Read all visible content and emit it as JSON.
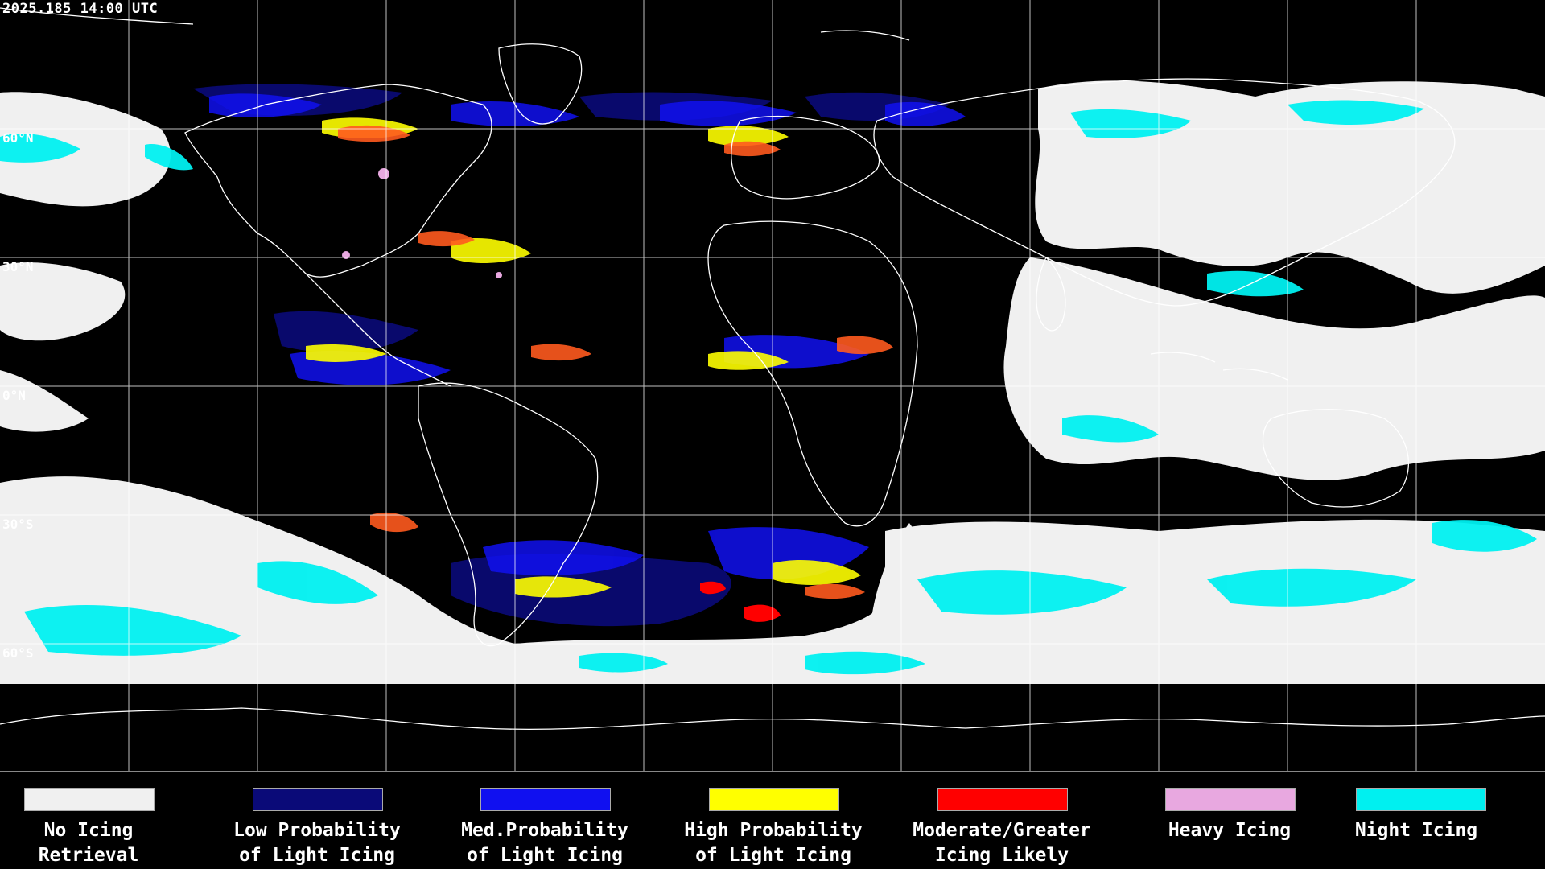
{
  "timestamp": "2025.185 14:00 UTC",
  "latitude_labels": [
    "60°N",
    "30°N",
    "0°N",
    "30°S",
    "60°S"
  ],
  "legend": [
    {
      "label": "No Icing\nRetrieval",
      "color": "#f0f0f0"
    },
    {
      "label": "Low Probability\nof Light Icing",
      "color": "#0a0a78"
    },
    {
      "label": "Med.Probability\nof Light Icing",
      "color": "#1010f0"
    },
    {
      "label": "High Probability\nof Light Icing",
      "color": "#ffff00"
    },
    {
      "label": "Moderate/Greater\nIcing Likely",
      "color": "#ff0000"
    },
    {
      "label": "Heavy Icing",
      "color": "#e8a8e0"
    },
    {
      "label": "Night Icing",
      "color": "#00f0f0"
    }
  ]
}
